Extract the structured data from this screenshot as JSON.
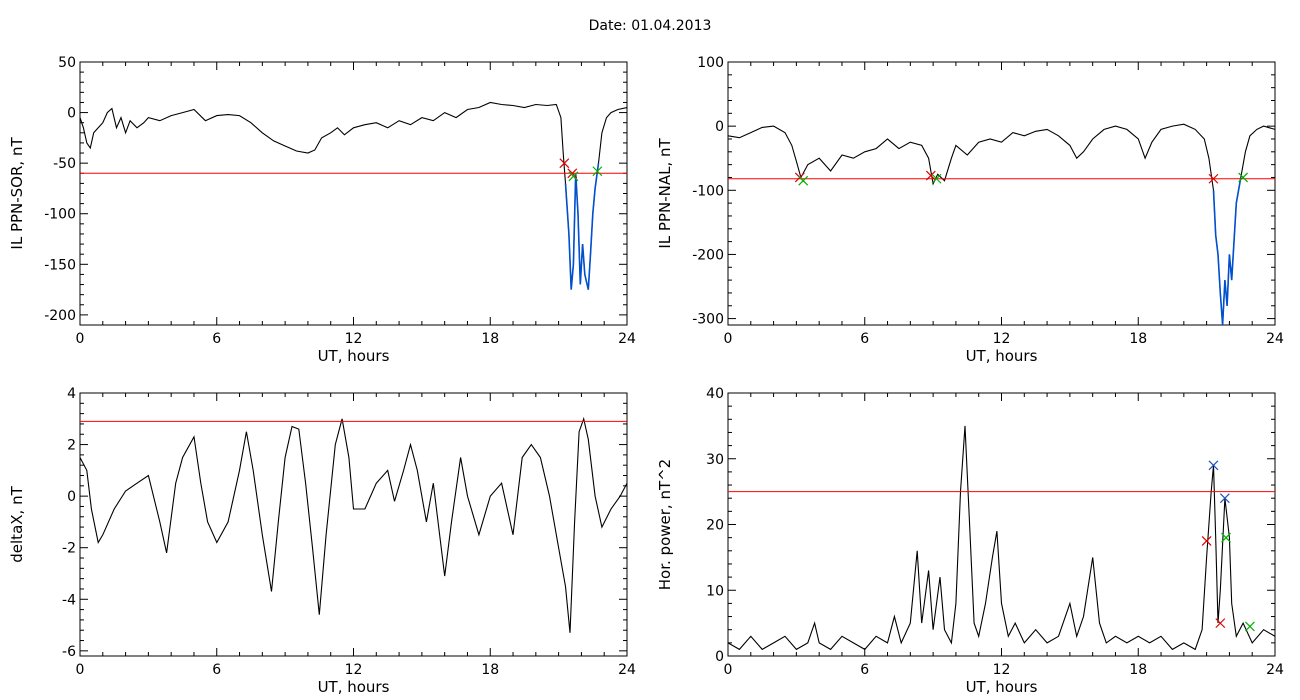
{
  "title": "Date:  01.04.2013",
  "colors": {
    "threshold": "#ff0000",
    "highlight": "#0050d0",
    "trace": "#000000",
    "marker_red": "#e00000",
    "marker_green": "#00b000",
    "marker_blue": "#2050c0"
  },
  "chart_data": [
    {
      "type": "line",
      "xlabel": "UT, hours",
      "ylabel": "IL PPN-SOR, nT",
      "xlim": [
        0,
        24
      ],
      "ylim": [
        -210,
        50
      ],
      "xticks": [
        0,
        6,
        12,
        18,
        24
      ],
      "yticks": [
        50,
        0,
        -50,
        -100,
        -150,
        -200
      ],
      "threshold": -60,
      "series_points": [
        [
          0,
          -5
        ],
        [
          0.15,
          -15
        ],
        [
          0.3,
          -30
        ],
        [
          0.45,
          -35
        ],
        [
          0.6,
          -20
        ],
        [
          0.8,
          -15
        ],
        [
          1.0,
          -10
        ],
        [
          1.2,
          0
        ],
        [
          1.4,
          4
        ],
        [
          1.6,
          -15
        ],
        [
          1.8,
          -5
        ],
        [
          2.0,
          -20
        ],
        [
          2.2,
          -8
        ],
        [
          2.5,
          -15
        ],
        [
          2.8,
          -10
        ],
        [
          3.0,
          -5
        ],
        [
          3.5,
          -8
        ],
        [
          4.0,
          -3
        ],
        [
          4.5,
          0
        ],
        [
          5.0,
          3
        ],
        [
          5.5,
          -8
        ],
        [
          6.0,
          -3
        ],
        [
          6.5,
          -2
        ],
        [
          7.0,
          -3
        ],
        [
          7.5,
          -10
        ],
        [
          8.0,
          -20
        ],
        [
          8.5,
          -28
        ],
        [
          9.0,
          -33
        ],
        [
          9.5,
          -38
        ],
        [
          10.0,
          -40
        ],
        [
          10.3,
          -37
        ],
        [
          10.6,
          -25
        ],
        [
          11.0,
          -20
        ],
        [
          11.3,
          -15
        ],
        [
          11.6,
          -22
        ],
        [
          12.0,
          -15
        ],
        [
          12.5,
          -12
        ],
        [
          13.0,
          -10
        ],
        [
          13.5,
          -15
        ],
        [
          14.0,
          -8
        ],
        [
          14.5,
          -12
        ],
        [
          15.0,
          -5
        ],
        [
          15.5,
          -8
        ],
        [
          16.0,
          0
        ],
        [
          16.5,
          -5
        ],
        [
          17.0,
          3
        ],
        [
          17.5,
          5
        ],
        [
          18.0,
          10
        ],
        [
          18.5,
          8
        ],
        [
          19.0,
          7
        ],
        [
          19.5,
          5
        ],
        [
          20.0,
          8
        ],
        [
          20.5,
          7
        ],
        [
          20.9,
          8
        ],
        [
          21.1,
          -5
        ],
        [
          21.2,
          -40
        ],
        [
          21.3,
          -70
        ],
        [
          21.45,
          -120
        ],
        [
          21.55,
          -175
        ],
        [
          21.65,
          -150
        ],
        [
          21.75,
          -60
        ],
        [
          21.85,
          -100
        ],
        [
          21.95,
          -170
        ],
        [
          22.05,
          -130
        ],
        [
          22.15,
          -160
        ],
        [
          22.3,
          -175
        ],
        [
          22.4,
          -140
        ],
        [
          22.5,
          -100
        ],
        [
          22.6,
          -75
        ],
        [
          22.75,
          -50
        ],
        [
          22.9,
          -20
        ],
        [
          23.1,
          -5
        ],
        [
          23.3,
          0
        ],
        [
          23.6,
          3
        ],
        [
          24.0,
          5
        ]
      ],
      "highlight_ranges": [
        [
          21.25,
          22.75
        ]
      ],
      "markers": [
        {
          "x": 21.25,
          "y": -50,
          "color": "red"
        },
        {
          "x": 21.6,
          "y": -60,
          "color": "red"
        },
        {
          "x": 21.65,
          "y": -63,
          "color": "green"
        },
        {
          "x": 22.7,
          "y": -58,
          "color": "green"
        }
      ]
    },
    {
      "type": "line",
      "xlabel": "UT, hours",
      "ylabel": "IL PPN-NAL, nT",
      "xlim": [
        0,
        24
      ],
      "ylim": [
        -310,
        100
      ],
      "xticks": [
        0,
        6,
        12,
        18,
        24
      ],
      "yticks": [
        100,
        0,
        -100,
        -200,
        -300
      ],
      "threshold": -82,
      "series_points": [
        [
          0,
          -15
        ],
        [
          0.5,
          -18
        ],
        [
          1.0,
          -10
        ],
        [
          1.5,
          -2
        ],
        [
          2.0,
          0
        ],
        [
          2.5,
          -10
        ],
        [
          2.8,
          -30
        ],
        [
          3.0,
          -55
        ],
        [
          3.2,
          -80
        ],
        [
          3.5,
          -60
        ],
        [
          4.0,
          -50
        ],
        [
          4.5,
          -70
        ],
        [
          5.0,
          -45
        ],
        [
          5.5,
          -50
        ],
        [
          6.0,
          -40
        ],
        [
          6.5,
          -35
        ],
        [
          7.0,
          -20
        ],
        [
          7.5,
          -35
        ],
        [
          8.0,
          -25
        ],
        [
          8.5,
          -30
        ],
        [
          8.8,
          -50
        ],
        [
          9.0,
          -90
        ],
        [
          9.2,
          -75
        ],
        [
          9.5,
          -85
        ],
        [
          9.8,
          -50
        ],
        [
          10.0,
          -30
        ],
        [
          10.5,
          -45
        ],
        [
          11.0,
          -25
        ],
        [
          11.5,
          -20
        ],
        [
          12.0,
          -25
        ],
        [
          12.5,
          -10
        ],
        [
          13.0,
          -15
        ],
        [
          13.5,
          -8
        ],
        [
          14.0,
          -5
        ],
        [
          14.5,
          -15
        ],
        [
          15.0,
          -30
        ],
        [
          15.3,
          -50
        ],
        [
          15.6,
          -40
        ],
        [
          16.0,
          -20
        ],
        [
          16.5,
          -5
        ],
        [
          17.0,
          0
        ],
        [
          17.5,
          -5
        ],
        [
          18.0,
          -20
        ],
        [
          18.3,
          -50
        ],
        [
          18.6,
          -25
        ],
        [
          19.0,
          -5
        ],
        [
          19.5,
          0
        ],
        [
          20.0,
          3
        ],
        [
          20.5,
          -5
        ],
        [
          20.9,
          -20
        ],
        [
          21.1,
          -50
        ],
        [
          21.3,
          -100
        ],
        [
          21.4,
          -170
        ],
        [
          21.5,
          -200
        ],
        [
          21.6,
          -260
        ],
        [
          21.7,
          -310
        ],
        [
          21.8,
          -240
        ],
        [
          21.9,
          -280
        ],
        [
          22.0,
          -200
        ],
        [
          22.1,
          -240
        ],
        [
          22.2,
          -180
        ],
        [
          22.3,
          -120
        ],
        [
          22.5,
          -80
        ],
        [
          22.7,
          -40
        ],
        [
          22.9,
          -15
        ],
        [
          23.2,
          -5
        ],
        [
          23.5,
          0
        ],
        [
          24.0,
          -5
        ]
      ],
      "highlight_ranges": [
        [
          3.05,
          3.3
        ],
        [
          9.0,
          9.15
        ],
        [
          21.3,
          22.6
        ]
      ],
      "markers": [
        {
          "x": 3.15,
          "y": -80,
          "color": "red"
        },
        {
          "x": 3.3,
          "y": -85,
          "color": "green"
        },
        {
          "x": 8.9,
          "y": -77,
          "color": "red"
        },
        {
          "x": 9.15,
          "y": -82,
          "color": "green"
        },
        {
          "x": 21.3,
          "y": -82,
          "color": "red"
        },
        {
          "x": 22.6,
          "y": -80,
          "color": "green"
        }
      ]
    },
    {
      "type": "line",
      "xlabel": "UT, hours",
      "ylabel": "deltaX, nT",
      "xlim": [
        0,
        24
      ],
      "ylim": [
        -6.2,
        4
      ],
      "xticks": [
        0,
        6,
        12,
        18,
        24
      ],
      "yticks": [
        4,
        2,
        0,
        -2,
        -4,
        -6
      ],
      "threshold": 2.9,
      "series_points": [
        [
          0,
          1.5
        ],
        [
          0.3,
          1.0
        ],
        [
          0.5,
          -0.5
        ],
        [
          0.8,
          -1.8
        ],
        [
          1.0,
          -1.5
        ],
        [
          1.5,
          -0.5
        ],
        [
          2.0,
          0.2
        ],
        [
          2.5,
          0.5
        ],
        [
          3.0,
          0.8
        ],
        [
          3.5,
          -1.0
        ],
        [
          3.8,
          -2.2
        ],
        [
          4.2,
          0.5
        ],
        [
          4.5,
          1.5
        ],
        [
          5.0,
          2.3
        ],
        [
          5.3,
          0.5
        ],
        [
          5.6,
          -1.0
        ],
        [
          6.0,
          -1.8
        ],
        [
          6.5,
          -1.0
        ],
        [
          7.0,
          1.0
        ],
        [
          7.3,
          2.5
        ],
        [
          7.6,
          1.0
        ],
        [
          8.0,
          -1.5
        ],
        [
          8.4,
          -3.7
        ],
        [
          8.7,
          -1.0
        ],
        [
          9.0,
          1.5
        ],
        [
          9.3,
          2.7
        ],
        [
          9.6,
          2.6
        ],
        [
          9.9,
          0.5
        ],
        [
          10.2,
          -2.0
        ],
        [
          10.5,
          -4.6
        ],
        [
          10.8,
          -1.5
        ],
        [
          11.2,
          2.0
        ],
        [
          11.5,
          3.0
        ],
        [
          11.8,
          1.5
        ],
        [
          12.0,
          -0.5
        ],
        [
          12.5,
          -0.5
        ],
        [
          13.0,
          0.5
        ],
        [
          13.5,
          1.0
        ],
        [
          13.8,
          -0.2
        ],
        [
          14.2,
          1.0
        ],
        [
          14.5,
          2.0
        ],
        [
          14.8,
          1.0
        ],
        [
          15.2,
          -1.0
        ],
        [
          15.5,
          0.5
        ],
        [
          16.0,
          -3.1
        ],
        [
          16.3,
          -1.0
        ],
        [
          16.7,
          1.5
        ],
        [
          17.0,
          0.0
        ],
        [
          17.5,
          -1.5
        ],
        [
          18.0,
          0.0
        ],
        [
          18.5,
          0.5
        ],
        [
          19.0,
          -1.5
        ],
        [
          19.4,
          1.5
        ],
        [
          19.8,
          2.0
        ],
        [
          20.2,
          1.5
        ],
        [
          20.6,
          0.0
        ],
        [
          21.0,
          -2.0
        ],
        [
          21.3,
          -3.5
        ],
        [
          21.5,
          -5.3
        ],
        [
          21.7,
          -1.0
        ],
        [
          21.9,
          2.5
        ],
        [
          22.1,
          3.0
        ],
        [
          22.3,
          2.2
        ],
        [
          22.6,
          0.0
        ],
        [
          22.9,
          -1.2
        ],
        [
          23.3,
          -0.5
        ],
        [
          23.7,
          0.0
        ],
        [
          24.0,
          0.5
        ]
      ],
      "highlight_ranges": [],
      "markers": []
    },
    {
      "type": "line",
      "xlabel": "UT, hours",
      "ylabel": "Hor. power, nT^2",
      "xlim": [
        0,
        24
      ],
      "ylim": [
        0,
        40
      ],
      "xticks": [
        0,
        6,
        12,
        18,
        24
      ],
      "yticks": [
        40,
        30,
        20,
        10,
        0
      ],
      "threshold": 25,
      "series_points": [
        [
          0,
          2
        ],
        [
          0.5,
          1
        ],
        [
          1.0,
          3
        ],
        [
          1.5,
          1
        ],
        [
          2.0,
          2
        ],
        [
          2.5,
          3
        ],
        [
          3.0,
          1
        ],
        [
          3.5,
          2
        ],
        [
          3.8,
          5
        ],
        [
          4.0,
          2
        ],
        [
          4.5,
          1
        ],
        [
          5.0,
          3
        ],
        [
          5.5,
          2
        ],
        [
          6.0,
          1
        ],
        [
          6.5,
          3
        ],
        [
          7.0,
          2
        ],
        [
          7.3,
          6
        ],
        [
          7.6,
          2
        ],
        [
          8.0,
          5
        ],
        [
          8.3,
          16
        ],
        [
          8.5,
          5
        ],
        [
          8.8,
          13
        ],
        [
          9.0,
          4
        ],
        [
          9.3,
          12
        ],
        [
          9.5,
          4
        ],
        [
          9.8,
          2
        ],
        [
          10.0,
          8
        ],
        [
          10.2,
          25
        ],
        [
          10.4,
          35
        ],
        [
          10.6,
          20
        ],
        [
          10.8,
          5
        ],
        [
          11.0,
          3
        ],
        [
          11.3,
          8
        ],
        [
          11.6,
          15
        ],
        [
          11.8,
          19
        ],
        [
          12.0,
          8
        ],
        [
          12.3,
          3
        ],
        [
          12.6,
          5
        ],
        [
          13.0,
          2
        ],
        [
          13.5,
          4
        ],
        [
          14.0,
          2
        ],
        [
          14.5,
          3
        ],
        [
          15.0,
          8
        ],
        [
          15.3,
          3
        ],
        [
          15.6,
          6
        ],
        [
          16.0,
          15
        ],
        [
          16.3,
          5
        ],
        [
          16.6,
          2
        ],
        [
          17.0,
          3
        ],
        [
          17.5,
          2
        ],
        [
          18.0,
          3
        ],
        [
          18.5,
          2
        ],
        [
          19.0,
          3
        ],
        [
          19.5,
          1
        ],
        [
          20.0,
          2
        ],
        [
          20.5,
          1
        ],
        [
          20.8,
          4
        ],
        [
          21.0,
          15
        ],
        [
          21.2,
          25
        ],
        [
          21.3,
          29
        ],
        [
          21.4,
          18
        ],
        [
          21.5,
          5
        ],
        [
          21.6,
          10
        ],
        [
          21.8,
          24
        ],
        [
          22.0,
          18
        ],
        [
          22.1,
          8
        ],
        [
          22.3,
          3
        ],
        [
          22.6,
          5
        ],
        [
          23.0,
          2
        ],
        [
          23.5,
          4
        ],
        [
          24.0,
          3
        ]
      ],
      "highlight_ranges": [],
      "markers": [
        {
          "x": 21.0,
          "y": 17.5,
          "color": "red"
        },
        {
          "x": 21.3,
          "y": 29,
          "color": "blue"
        },
        {
          "x": 21.6,
          "y": 5,
          "color": "red"
        },
        {
          "x": 21.8,
          "y": 24,
          "color": "blue"
        },
        {
          "x": 21.85,
          "y": 18,
          "color": "green"
        },
        {
          "x": 22.9,
          "y": 4.5,
          "color": "green"
        }
      ]
    }
  ]
}
